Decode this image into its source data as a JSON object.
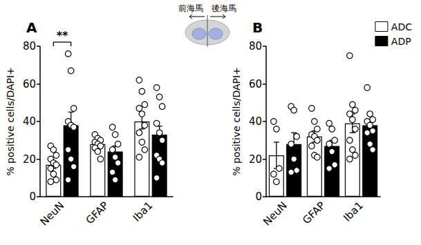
{
  "chart_data": [
    {
      "type": "bar",
      "panel": "A",
      "categories": [
        "NeuN",
        "GFAP",
        "Iba1"
      ],
      "y_label": "% positive cells/DAPI+",
      "ylim": [
        0,
        80
      ],
      "yticks": [
        0,
        20,
        40,
        60,
        80
      ],
      "grid": false,
      "series": [
        {
          "name": "ADC",
          "color": "#ffffff",
          "values": [
            17,
            28,
            40
          ],
          "errors": [
            2,
            1.5,
            4
          ],
          "points": [
            [
              27,
              25,
              22,
              20,
              18,
              17,
              15,
              12,
              9,
              8
            ],
            [
              33,
              31,
              30,
              29,
              28,
              27,
              26,
              24,
              20
            ],
            [
              62,
              56,
              49,
              47,
              44,
              38,
              34,
              29,
              25,
              21
            ]
          ]
        },
        {
          "name": "ADP",
          "color": "#000000",
          "values": [
            38,
            24,
            33
          ],
          "errors": [
            7,
            3,
            4.5
          ],
          "points": [
            [
              76,
              67,
              47,
              40,
              38,
              37,
              25,
              20,
              16,
              9
            ],
            [
              37,
              33,
              28,
              25,
              21,
              18,
              13,
              9
            ],
            [
              58,
              53,
              48,
              39,
              34,
              30,
              22,
              20,
              18,
              10
            ]
          ]
        }
      ],
      "significance": [
        {
          "category": "NeuN",
          "label": "**"
        }
      ]
    },
    {
      "type": "bar",
      "panel": "B",
      "categories": [
        "NeuN",
        "GFAP",
        "Iba1"
      ],
      "y_label": "% positive cells/DAPI+",
      "ylim": [
        0,
        80
      ],
      "yticks": [
        0,
        20,
        40,
        60,
        80
      ],
      "grid": false,
      "legend": "upper right",
      "series": [
        {
          "name": "ADC",
          "color": "#ffffff",
          "values": [
            22,
            32,
            39
          ],
          "errors": [
            7,
            3,
            5
          ],
          "points": [
            [
              40,
              36,
              15,
              12,
              8
            ],
            [
              47,
              40,
              36,
              33,
              32,
              30,
              27,
              22,
              21
            ],
            [
              75,
              49,
              46,
              44,
              41,
              36,
              30,
              25,
              22,
              20
            ]
          ]
        },
        {
          "name": "ADP",
          "color": "#000000",
          "values": [
            28,
            27,
            38
          ],
          "errors": [
            6,
            3,
            3
          ],
          "points": [
            [
              48,
              46,
              32,
              28,
              20,
              14,
              13
            ],
            [
              39,
              36,
              30,
              28,
              24,
              17,
              15
            ],
            [
              58,
              44,
              41,
              40,
              38,
              35,
              34,
              28,
              25
            ]
          ]
        }
      ]
    }
  ],
  "inset": {
    "labels": [
      "前海馬",
      "後海馬"
    ]
  }
}
